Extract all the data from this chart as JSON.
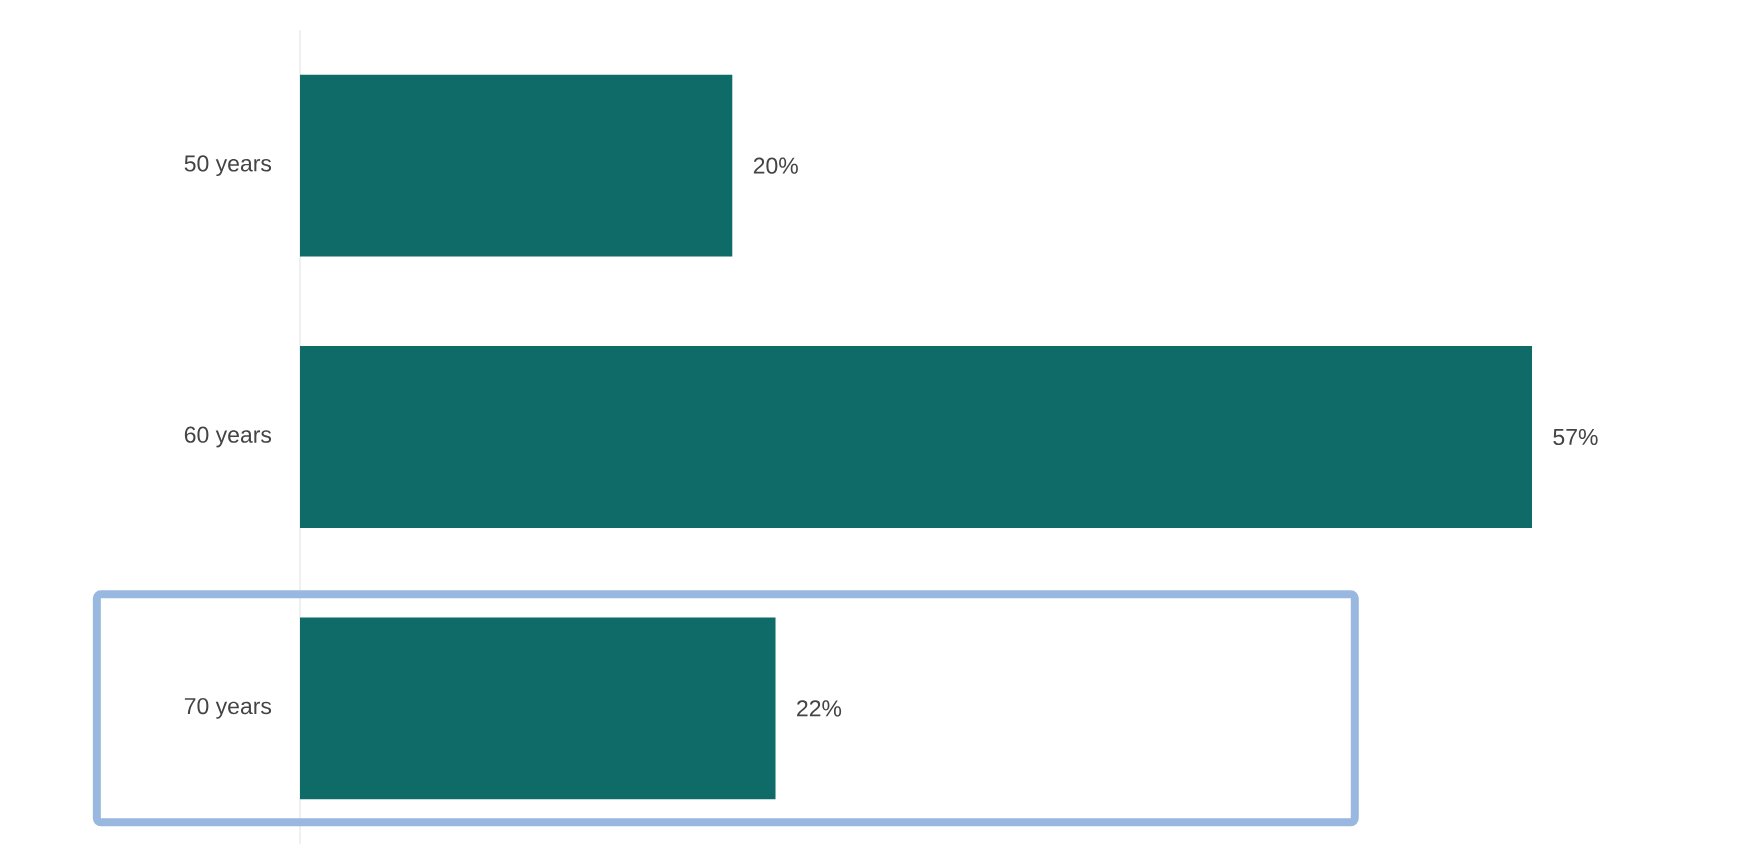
{
  "chart_data": {
    "type": "bar",
    "orientation": "horizontal",
    "categories": [
      "50 years",
      "60 years",
      "70 years"
    ],
    "values": [
      20,
      57,
      22
    ],
    "value_labels": [
      "20%",
      "57%",
      "22%"
    ],
    "color": "#0f6b68"
  }
}
